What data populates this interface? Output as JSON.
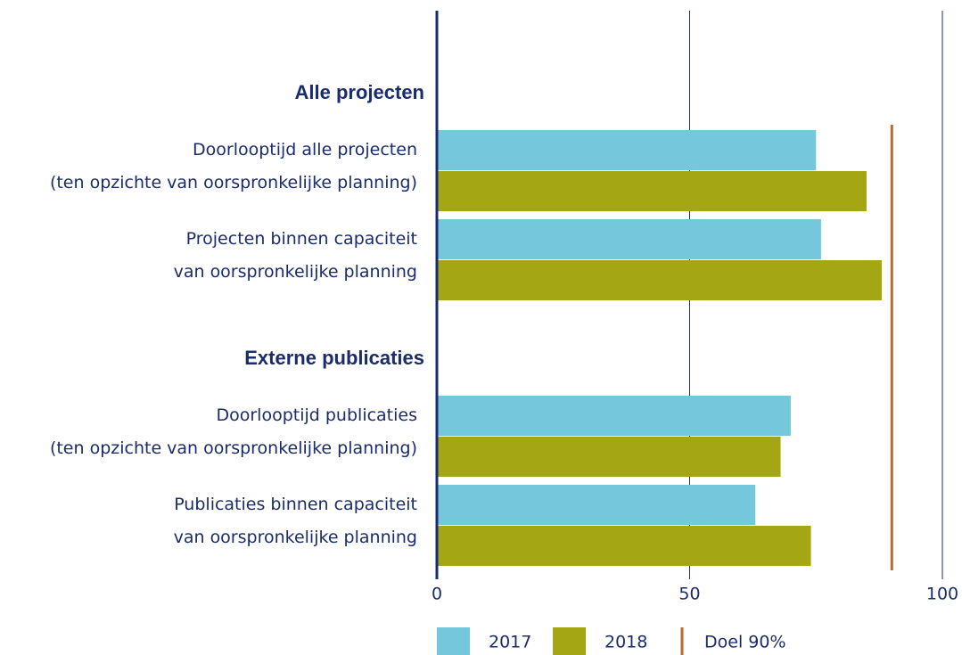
{
  "chart_data": {
    "type": "bar",
    "orientation": "horizontal",
    "series": [
      {
        "name": "2017",
        "color": "#75c7db"
      },
      {
        "name": "2018",
        "color": "#a5a613"
      }
    ],
    "groups": [
      {
        "name": "Alle projecten",
        "categories": [
          [
            "Doorlooptijd alle projecten",
            "(ten opzichte van oorspronkelijke planning)"
          ],
          [
            "Projecten binnen capaciteit",
            "van oorspronkelijke planning"
          ]
        ],
        "values": [
          [
            75,
            85
          ],
          [
            76,
            88
          ]
        ]
      },
      {
        "name": "Externe publicaties",
        "categories": [
          [
            "Doorlooptijd publicaties",
            "(ten opzichte van oorspronkelijke planning)"
          ],
          [
            "Publicaties binnen capaciteit",
            "van oorspronkelijke planning"
          ]
        ],
        "values": [
          [
            70,
            68
          ],
          [
            63,
            74
          ]
        ]
      }
    ],
    "target": {
      "label": "Doel 90%",
      "value": 90,
      "color": "#c0692e"
    },
    "xlim": [
      0,
      100
    ],
    "xticks": [
      0,
      50,
      100
    ],
    "grid": true
  }
}
